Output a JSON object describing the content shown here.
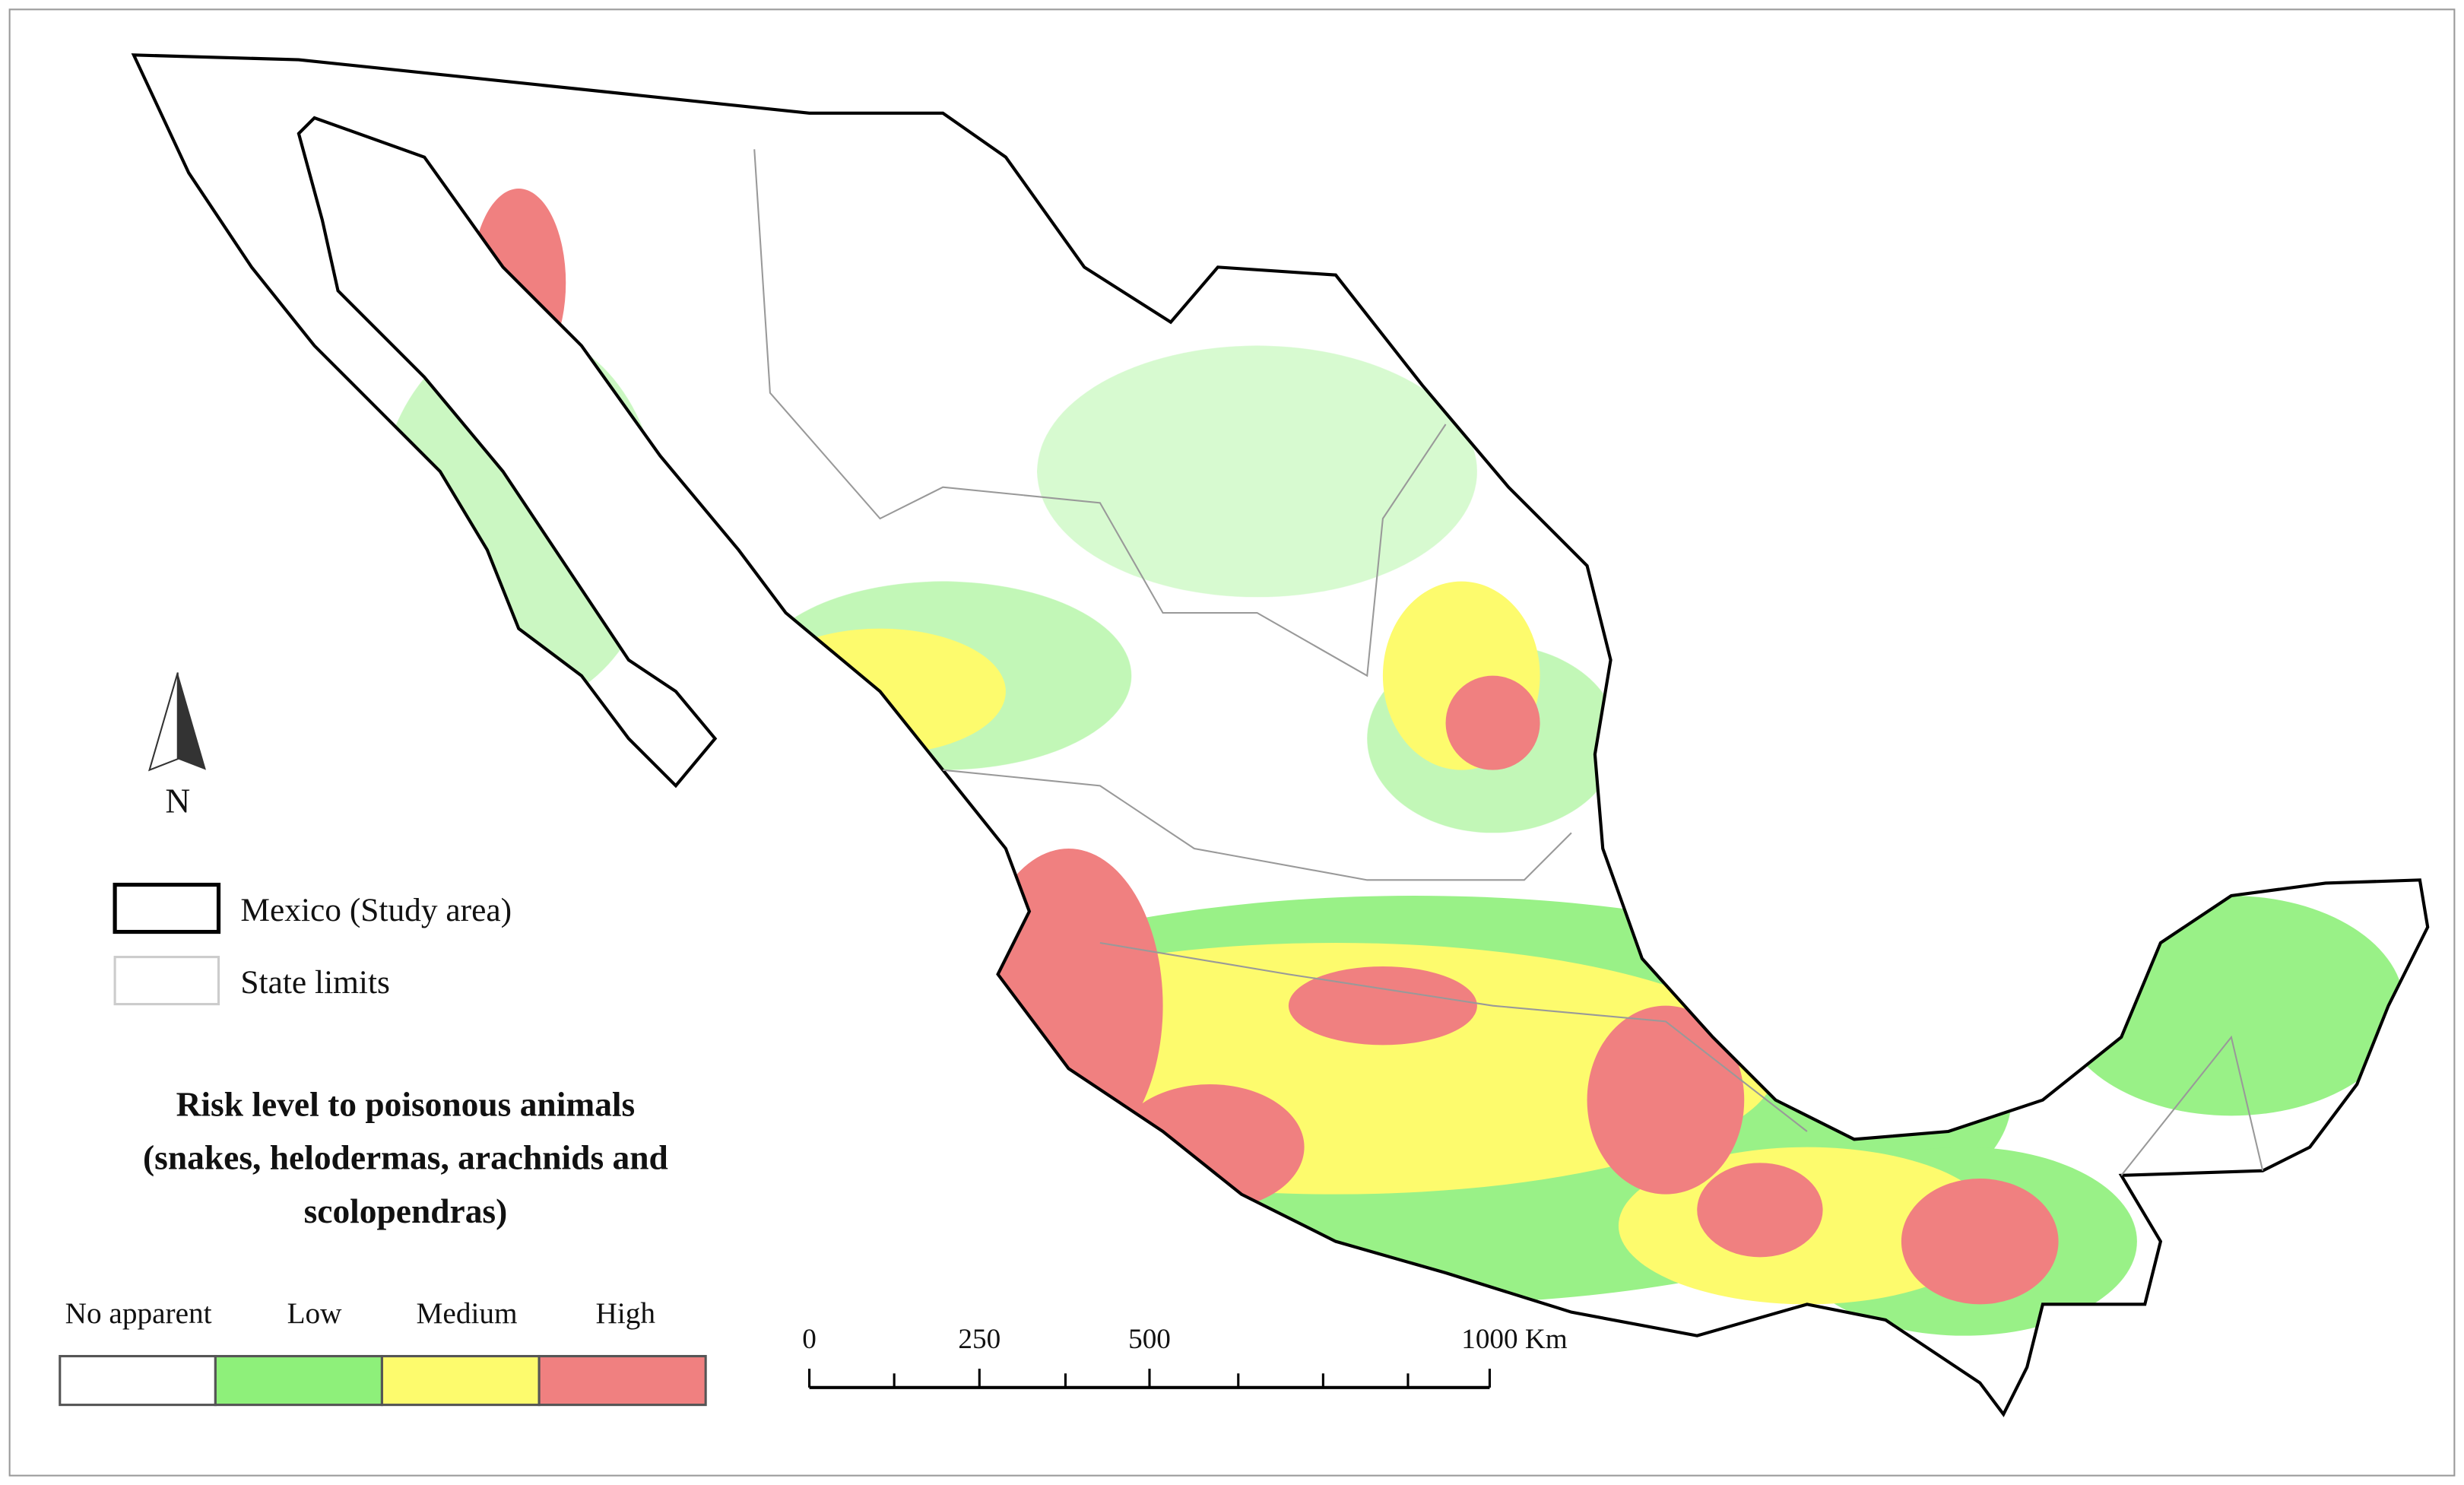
{
  "north_arrow": {
    "label": "N"
  },
  "legend": {
    "boundaries": [
      {
        "label": "Mexico (Study area)"
      },
      {
        "label": "State limits"
      }
    ],
    "title_lines": [
      "Risk level to poisonous animals",
      "(snakes, helodermas, arachnids and",
      "scolopendras)"
    ],
    "classes": [
      {
        "label": "No apparent",
        "color": "#ffffff"
      },
      {
        "label": "Low",
        "color": "#8ef07a"
      },
      {
        "label": "Medium",
        "color": "#fdfb6d"
      },
      {
        "label": "High",
        "color": "#f08080"
      }
    ]
  },
  "scale_bar": {
    "ticks": [
      0,
      250,
      500,
      {
        "value": 1000,
        "label": "1000 Km"
      }
    ],
    "range": [
      0,
      1000
    ]
  }
}
